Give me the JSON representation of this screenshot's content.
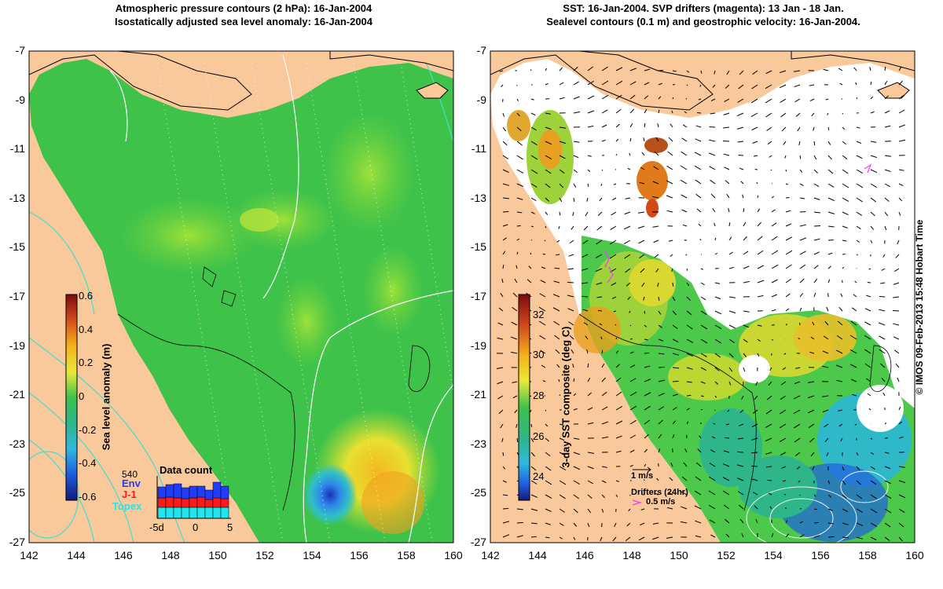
{
  "left_panel": {
    "title_line1": "Atmospheric pressure contours (2 hPa): 16-Jan-2004",
    "title_line2": "Isostatically adjusted sea level anomaly: 16-Jan-2004",
    "colorbar": {
      "label": "Sea level anomaly (m)",
      "ticks": [
        "0.6",
        "0.4",
        "0.2",
        "0",
        "-0.2",
        "-0.4",
        "-0.6"
      ]
    },
    "data_count": {
      "title": "Data count",
      "max": "540",
      "env_label": "Env",
      "j1_label": "J-1",
      "topex_label": "Topex",
      "x_ticks": [
        "-5d",
        "0",
        "5"
      ],
      "env_color": "#1f3cff",
      "j1_color": "#ff1a1a",
      "topex_color": "#22e6ee"
    }
  },
  "right_panel": {
    "title_line1": "SST: 16-Jan-2004. SVP drifters (magenta): 13 Jan - 18 Jan.",
    "title_line2": "Sealevel contours (0.1 m) and geostrophic velocity: 16-Jan-2004.",
    "colorbar": {
      "label": "3-day SST composite (deg C)",
      "ticks": [
        "32",
        "30",
        "28",
        "26",
        "24"
      ]
    },
    "velocity_scale_label": "1 m/s",
    "drifters_label": "Drifters (24hr)",
    "drifter_speed_label": "0.5 m/s"
  },
  "axes": {
    "lat_ticks": [
      "-7",
      "-9",
      "-11",
      "-13",
      "-15",
      "-17",
      "-19",
      "-21",
      "-23",
      "-25",
      "-27"
    ],
    "lon_ticks": [
      "142",
      "144",
      "146",
      "148",
      "150",
      "152",
      "154",
      "156",
      "158",
      "160"
    ]
  },
  "credit": "© IMOS 09-Feb-2013 15:48 Hobart Time",
  "colors": {
    "land": "#f9c89b",
    "sea_green": "#3ec24a",
    "white_contour": "#ffffff",
    "cyan_contour": "#40e0d0",
    "drifter": "#ff33ff"
  }
}
